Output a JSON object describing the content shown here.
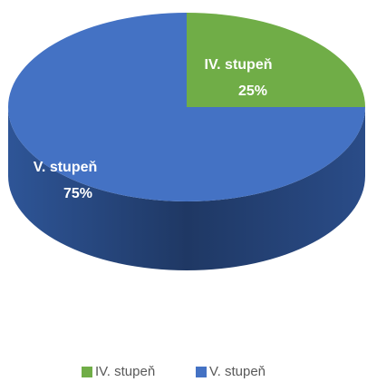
{
  "chart_data": {
    "type": "pie",
    "categories": [
      "IV. stupeň",
      "V. stupeň"
    ],
    "values": [
      25,
      75
    ],
    "value_labels": [
      "25%",
      "75%"
    ],
    "colors": [
      "#70ad47",
      "#4472c4"
    ],
    "legend": "bottom"
  }
}
